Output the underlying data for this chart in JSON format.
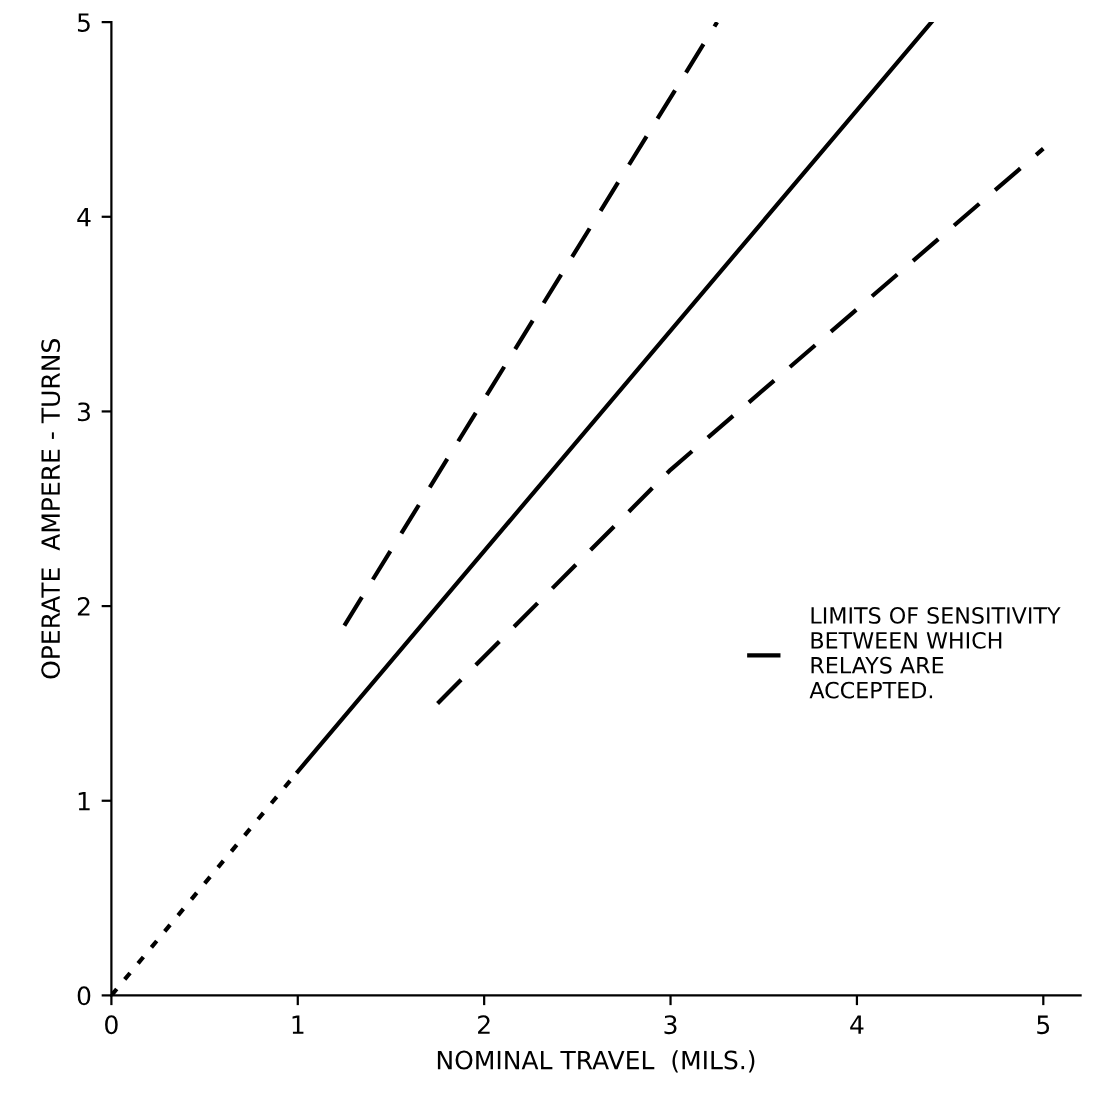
{
  "chart_data": {
    "type": "line",
    "xlabel": "NOMINAL TRAVEL  (MILS.)",
    "ylabel": "OPERATE  AMPERE - TURNS",
    "xlim": [
      0,
      5.2
    ],
    "ylim": [
      0,
      5
    ],
    "xticks": [
      0,
      1,
      2,
      3,
      4,
      5
    ],
    "yticks": [
      0,
      1,
      2,
      3,
      4,
      5
    ],
    "grid": false,
    "legend": "right",
    "marker": "none",
    "series": [
      {
        "color": "#000000",
        "line_style": "dotted",
        "x": [
          0,
          1
        ],
        "values": [
          0,
          1.15
        ]
      },
      {
        "color": "#000000",
        "line_style": "solid",
        "x": [
          1,
          4.4
        ],
        "values": [
          1.15,
          5
        ]
      },
      {
        "name": "LIMITS OF SENSITIVITY\nBETWEEN WHICH\nRELAYS ARE\nACCEPTED.",
        "color": "#000000",
        "line_style": "dashed",
        "x": [
          1.25,
          3.25
        ],
        "values": [
          1.9,
          5
        ]
      },
      {
        "color": "#000000",
        "line_style": "dashed",
        "x": [
          1.75,
          3,
          5
        ],
        "values": [
          1.5,
          2.7,
          4.35
        ]
      }
    ]
  }
}
